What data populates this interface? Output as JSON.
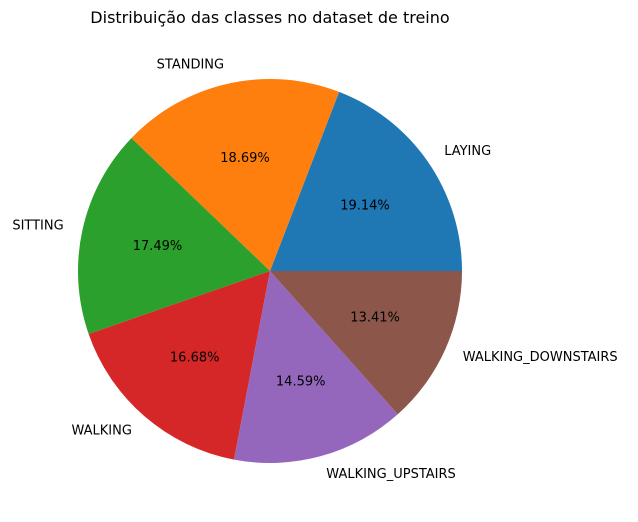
{
  "chart_data": {
    "type": "pie",
    "title": "Distribuição das classes no dataset de treino",
    "categories": [
      "LAYING",
      "STANDING",
      "SITTING",
      "WALKING",
      "WALKING_UPSTAIRS",
      "WALKING_DOWNSTAIRS"
    ],
    "values": [
      19.14,
      18.69,
      17.49,
      16.68,
      14.59,
      13.41
    ],
    "value_labels": [
      "19.14%",
      "18.69%",
      "17.49%",
      "16.68%",
      "14.59%",
      "13.41%"
    ],
    "colors": [
      "#1f77b4",
      "#ff7f0e",
      "#2ca02c",
      "#d62728",
      "#9467bd",
      "#8c564b"
    ],
    "start_angle_deg": 0,
    "direction": "counterclockwise"
  }
}
